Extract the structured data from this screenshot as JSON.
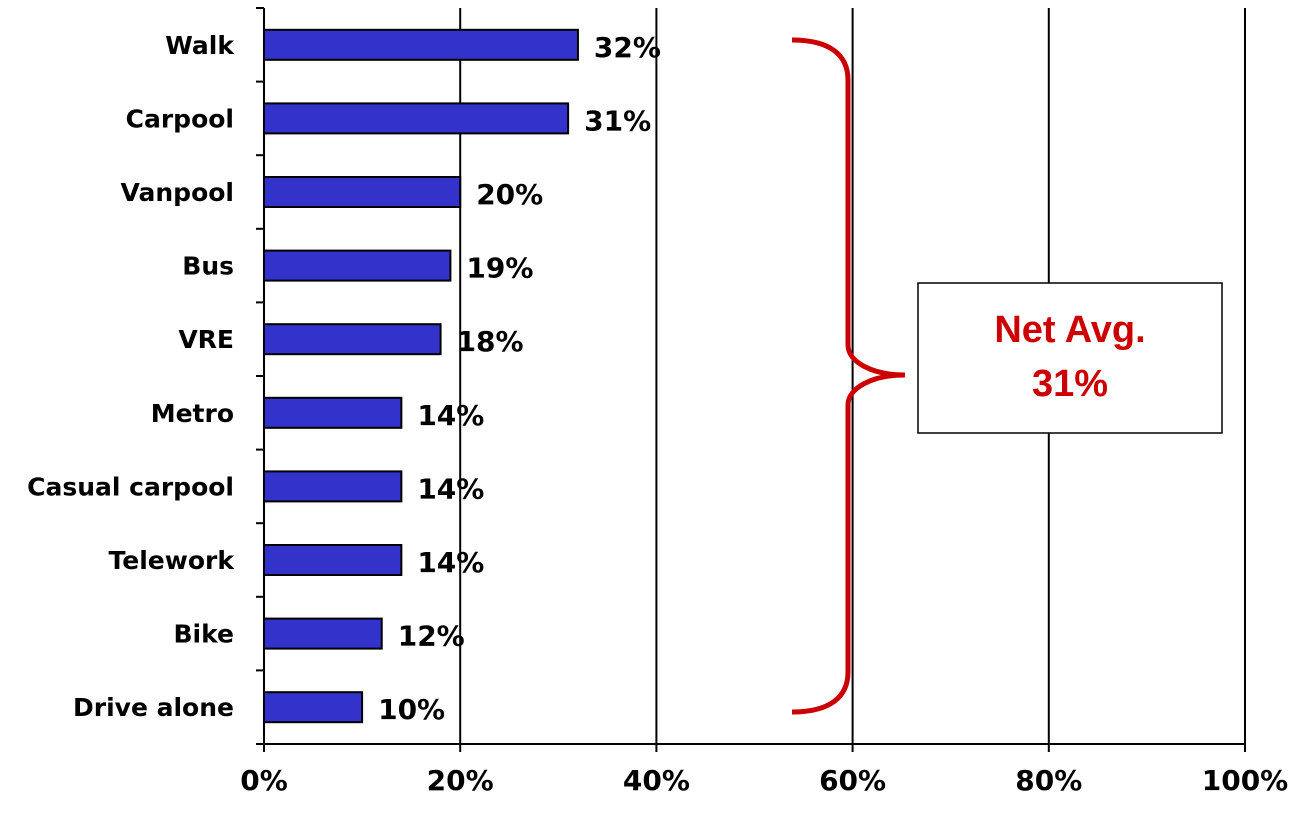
{
  "chart_data": {
    "type": "bar",
    "orientation": "horizontal",
    "categories": [
      "Walk",
      "Carpool",
      "Vanpool",
      "Bus",
      "VRE",
      "Metro",
      "Casual carpool",
      "Telework",
      "Bike",
      "Drive alone"
    ],
    "values": [
      32,
      31,
      20,
      19,
      18,
      14,
      14,
      14,
      12,
      10
    ],
    "value_labels": [
      "32%",
      "31%",
      "20%",
      "19%",
      "18%",
      "14%",
      "14%",
      "14%",
      "12%",
      "10%"
    ],
    "xlim": [
      0,
      100
    ],
    "xticks": [
      0,
      20,
      40,
      60,
      80,
      100
    ],
    "xtick_labels": [
      "0%",
      "20%",
      "40%",
      "60%",
      "80%",
      "100%"
    ],
    "grid": "vertical",
    "bar_color": "#3333CC",
    "annotation": {
      "line1": "Net Avg.",
      "line2": "31%",
      "color": "#CC0000",
      "brace_color": "#CC0000"
    }
  }
}
